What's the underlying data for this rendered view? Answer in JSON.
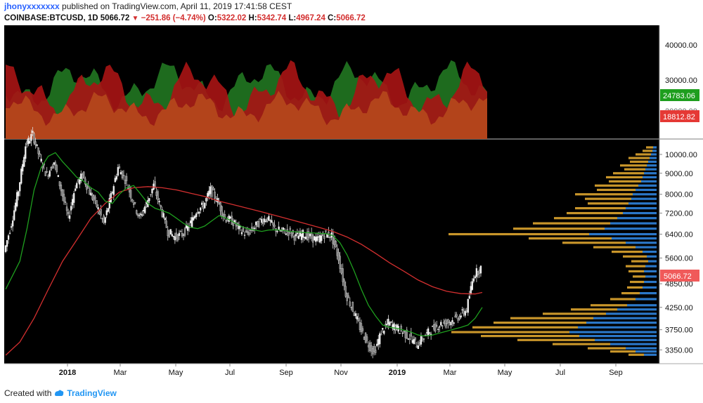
{
  "header": {
    "username": "jhonyxxxxxxx",
    "published": " published on TradingView.com, April 11, 2019 17:41:58 CEST",
    "symbol": "COINBASE:BTCUSD, 1D",
    "last": "5066.72",
    "change": "−251.86 (−4.74%)",
    "o_label": "O:",
    "o_value": "5322.02",
    "h_label": "H:",
    "h_value": "5342.74",
    "l_label": "L:",
    "l_value": "4967.24",
    "c_label": "C:",
    "c_value": "5066.72"
  },
  "footer": {
    "created_with": "Created with",
    "brand": "TradingView"
  },
  "colors": {
    "background": "#000000",
    "up_area": "#1e6b1e",
    "down_area": "#a81414",
    "orange_area": "#b3441b",
    "fast_ma": "#1e9e1e",
    "slow_ma": "#d32f2f",
    "vp_blue": "#2b77c8",
    "vp_gold": "#c8952a",
    "last_price_tag": "#f05a5a",
    "green_tag": "#1e9e1e",
    "red_tag": "#e53935"
  },
  "chart_data": [
    {
      "type": "area",
      "name": "upper-indicator",
      "y_ticks": [
        "40000.00",
        "30000.00"
      ],
      "value_tags": [
        {
          "label": "24783.06",
          "color": "green"
        },
        {
          "label": "18812.82",
          "color": "red"
        }
      ],
      "hidden_tick": "20000.00"
    },
    {
      "type": "candlestick",
      "name": "price",
      "y_scale": "log",
      "y_ticks": [
        "10000.00",
        "9000.00",
        "8000.00",
        "7200.00",
        "6400.00",
        "5600.00",
        "4850.00",
        "4250.00",
        "3750.00",
        "3350.00"
      ],
      "y_tick_values": [
        10000,
        9000,
        8000,
        7200,
        6400,
        5600,
        4850,
        4250,
        3750,
        3350
      ],
      "x_ticks": [
        "2018",
        "Mar",
        "May",
        "Jul",
        "Sep",
        "Nov",
        "2019",
        "Mar",
        "May",
        "Jul",
        "Sep"
      ],
      "last_price_tag": "5066.72",
      "price_path": [
        [
          0,
          5800
        ],
        [
          1,
          6800
        ],
        [
          2,
          8200
        ],
        [
          3,
          10500
        ],
        [
          4,
          11200
        ],
        [
          5,
          9800
        ],
        [
          6,
          8900
        ],
        [
          7,
          9600
        ],
        [
          8,
          8200
        ],
        [
          9,
          7000
        ],
        [
          10,
          8400
        ],
        [
          11,
          8900
        ],
        [
          12,
          8100
        ],
        [
          13,
          7500
        ],
        [
          14,
          6800
        ],
        [
          15,
          7900
        ],
        [
          16,
          9300
        ],
        [
          17,
          8700
        ],
        [
          18,
          7800
        ],
        [
          19,
          7000
        ],
        [
          20,
          7600
        ],
        [
          21,
          8400
        ],
        [
          22,
          7400
        ],
        [
          23,
          6500
        ],
        [
          24,
          6300
        ],
        [
          25,
          6400
        ],
        [
          26,
          6700
        ],
        [
          27,
          7300
        ],
        [
          28,
          7500
        ],
        [
          29,
          8200
        ],
        [
          30,
          7700
        ],
        [
          31,
          7000
        ],
        [
          32,
          6900
        ],
        [
          33,
          6600
        ],
        [
          34,
          6400
        ],
        [
          35,
          6600
        ],
        [
          36,
          6900
        ],
        [
          37,
          7000
        ],
        [
          38,
          6600
        ],
        [
          39,
          6500
        ],
        [
          40,
          6500
        ],
        [
          41,
          6300
        ],
        [
          42,
          6400
        ],
        [
          43,
          6300
        ],
        [
          44,
          6200
        ],
        [
          45,
          6400
        ],
        [
          46,
          6350
        ],
        [
          47,
          5600
        ],
        [
          48,
          4600
        ],
        [
          49,
          4200
        ],
        [
          50,
          3800
        ],
        [
          51,
          3500
        ],
        [
          52,
          3300
        ],
        [
          53,
          3700
        ],
        [
          54,
          3900
        ],
        [
          55,
          3800
        ],
        [
          56,
          3700
        ],
        [
          57,
          3600
        ],
        [
          58,
          3450
        ],
        [
          59,
          3600
        ],
        [
          60,
          3750
        ],
        [
          61,
          3850
        ],
        [
          62,
          3900
        ],
        [
          63,
          3950
        ],
        [
          64,
          4050
        ],
        [
          65,
          4200
        ],
        [
          66,
          5100
        ],
        [
          67,
          5300
        ]
      ],
      "fast_ma": [
        [
          0,
          4700
        ],
        [
          2,
          5500
        ],
        [
          3,
          6600
        ],
        [
          4,
          8200
        ],
        [
          5,
          9300
        ],
        [
          6,
          9900
        ],
        [
          7,
          10100
        ],
        [
          8,
          9600
        ],
        [
          9,
          9200
        ],
        [
          10,
          8800
        ],
        [
          11,
          8600
        ],
        [
          12,
          8300
        ],
        [
          13,
          8100
        ],
        [
          14,
          7700
        ],
        [
          15,
          7600
        ],
        [
          16,
          8000
        ],
        [
          17,
          8300
        ],
        [
          18,
          8400
        ],
        [
          19,
          8000
        ],
        [
          20,
          7600
        ],
        [
          21,
          7400
        ],
        [
          22,
          7300
        ],
        [
          23,
          7200
        ],
        [
          24,
          7000
        ],
        [
          25,
          6800
        ],
        [
          26,
          6650
        ],
        [
          27,
          6600
        ],
        [
          28,
          6700
        ],
        [
          29,
          6900
        ],
        [
          30,
          7100
        ],
        [
          31,
          7000
        ],
        [
          32,
          6850
        ],
        [
          33,
          6700
        ],
        [
          34,
          6600
        ],
        [
          35,
          6550
        ],
        [
          36,
          6500
        ],
        [
          37,
          6550
        ],
        [
          38,
          6560
        ],
        [
          39,
          6540
        ],
        [
          40,
          6500
        ],
        [
          41,
          6480
        ],
        [
          42,
          6460
        ],
        [
          43,
          6450
        ],
        [
          44,
          6430
        ],
        [
          45,
          6420
        ],
        [
          46,
          6350
        ],
        [
          47,
          6100
        ],
        [
          48,
          5700
        ],
        [
          49,
          5200
        ],
        [
          50,
          4700
        ],
        [
          51,
          4300
        ],
        [
          52,
          4050
        ],
        [
          53,
          3850
        ],
        [
          54,
          3800
        ],
        [
          55,
          3780
        ],
        [
          56,
          3740
        ],
        [
          57,
          3700
        ],
        [
          58,
          3640
        ],
        [
          59,
          3620
        ],
        [
          60,
          3640
        ],
        [
          61,
          3680
        ],
        [
          62,
          3720
        ],
        [
          63,
          3760
        ],
        [
          64,
          3800
        ],
        [
          65,
          3850
        ],
        [
          66,
          4000
        ],
        [
          67,
          4250
        ]
      ],
      "slow_ma": [
        [
          0,
          3250
        ],
        [
          2,
          3500
        ],
        [
          4,
          4000
        ],
        [
          6,
          4700
        ],
        [
          8,
          5500
        ],
        [
          10,
          6200
        ],
        [
          12,
          7000
        ],
        [
          14,
          7600
        ],
        [
          16,
          8100
        ],
        [
          18,
          8300
        ],
        [
          20,
          8350
        ],
        [
          22,
          8300
        ],
        [
          24,
          8200
        ],
        [
          26,
          8050
        ],
        [
          28,
          7900
        ],
        [
          30,
          7700
        ],
        [
          32,
          7550
        ],
        [
          34,
          7400
        ],
        [
          36,
          7250
        ],
        [
          38,
          7100
        ],
        [
          40,
          6950
        ],
        [
          42,
          6800
        ],
        [
          44,
          6650
        ],
        [
          46,
          6500
        ],
        [
          48,
          6300
        ],
        [
          50,
          6050
        ],
        [
          52,
          5750
        ],
        [
          54,
          5450
        ],
        [
          56,
          5200
        ],
        [
          58,
          4950
        ],
        [
          60,
          4770
        ],
        [
          62,
          4650
        ],
        [
          64,
          4590
        ],
        [
          66,
          4580
        ],
        [
          67,
          4620
        ]
      ]
    },
    {
      "type": "bar",
      "name": "volume-profile",
      "orientation": "horizontal",
      "bins": [
        {
          "price": 10400,
          "gold": 10,
          "blue": 5
        },
        {
          "price": 10200,
          "gold": 14,
          "blue": 6
        },
        {
          "price": 10000,
          "gold": 22,
          "blue": 8
        },
        {
          "price": 9800,
          "gold": 30,
          "blue": 10
        },
        {
          "price": 9600,
          "gold": 26,
          "blue": 12
        },
        {
          "price": 9400,
          "gold": 38,
          "blue": 14
        },
        {
          "price": 9200,
          "gold": 30,
          "blue": 16
        },
        {
          "price": 9000,
          "gold": 44,
          "blue": 18
        },
        {
          "price": 8800,
          "gold": 52,
          "blue": 20
        },
        {
          "price": 8600,
          "gold": 46,
          "blue": 22
        },
        {
          "price": 8400,
          "gold": 62,
          "blue": 26
        },
        {
          "price": 8200,
          "gold": 55,
          "blue": 30
        },
        {
          "price": 8000,
          "gold": 82,
          "blue": 34
        },
        {
          "price": 7800,
          "gold": 66,
          "blue": 36
        },
        {
          "price": 7600,
          "gold": 58,
          "blue": 40
        },
        {
          "price": 7400,
          "gold": 72,
          "blue": 44
        },
        {
          "price": 7200,
          "gold": 80,
          "blue": 48
        },
        {
          "price": 7000,
          "gold": 90,
          "blue": 56
        },
        {
          "price": 6800,
          "gold": 110,
          "blue": 66
        },
        {
          "price": 6600,
          "gold": 130,
          "blue": 74
        },
        {
          "price": 6400,
          "gold": 200,
          "blue": 96
        },
        {
          "price": 6250,
          "gold": 118,
          "blue": 64
        },
        {
          "price": 6100,
          "gold": 90,
          "blue": 44
        },
        {
          "price": 5950,
          "gold": 60,
          "blue": 30
        },
        {
          "price": 5800,
          "gold": 44,
          "blue": 20
        },
        {
          "price": 5650,
          "gold": 34,
          "blue": 14
        },
        {
          "price": 5500,
          "gold": 24,
          "blue": 12
        },
        {
          "price": 5350,
          "gold": 28,
          "blue": 16
        },
        {
          "price": 5200,
          "gold": 22,
          "blue": 18
        },
        {
          "price": 5050,
          "gold": 18,
          "blue": 16
        },
        {
          "price": 4900,
          "gold": 20,
          "blue": 18
        },
        {
          "price": 4750,
          "gold": 22,
          "blue": 20
        },
        {
          "price": 4600,
          "gold": 26,
          "blue": 24
        },
        {
          "price": 4450,
          "gold": 36,
          "blue": 30
        },
        {
          "price": 4300,
          "gold": 52,
          "blue": 42
        },
        {
          "price": 4200,
          "gold": 66,
          "blue": 56
        },
        {
          "price": 4100,
          "gold": 90,
          "blue": 72
        },
        {
          "price": 4000,
          "gold": 118,
          "blue": 90
        },
        {
          "price": 3900,
          "gold": 132,
          "blue": 100
        },
        {
          "price": 3800,
          "gold": 150,
          "blue": 112
        },
        {
          "price": 3700,
          "gold": 168,
          "blue": 124
        },
        {
          "price": 3620,
          "gold": 140,
          "blue": 110
        },
        {
          "price": 3540,
          "gold": 110,
          "blue": 88
        },
        {
          "price": 3460,
          "gold": 82,
          "blue": 66
        },
        {
          "price": 3380,
          "gold": 54,
          "blue": 44
        },
        {
          "price": 3320,
          "gold": 36,
          "blue": 30
        },
        {
          "price": 3260,
          "gold": 22,
          "blue": 18
        }
      ]
    }
  ]
}
